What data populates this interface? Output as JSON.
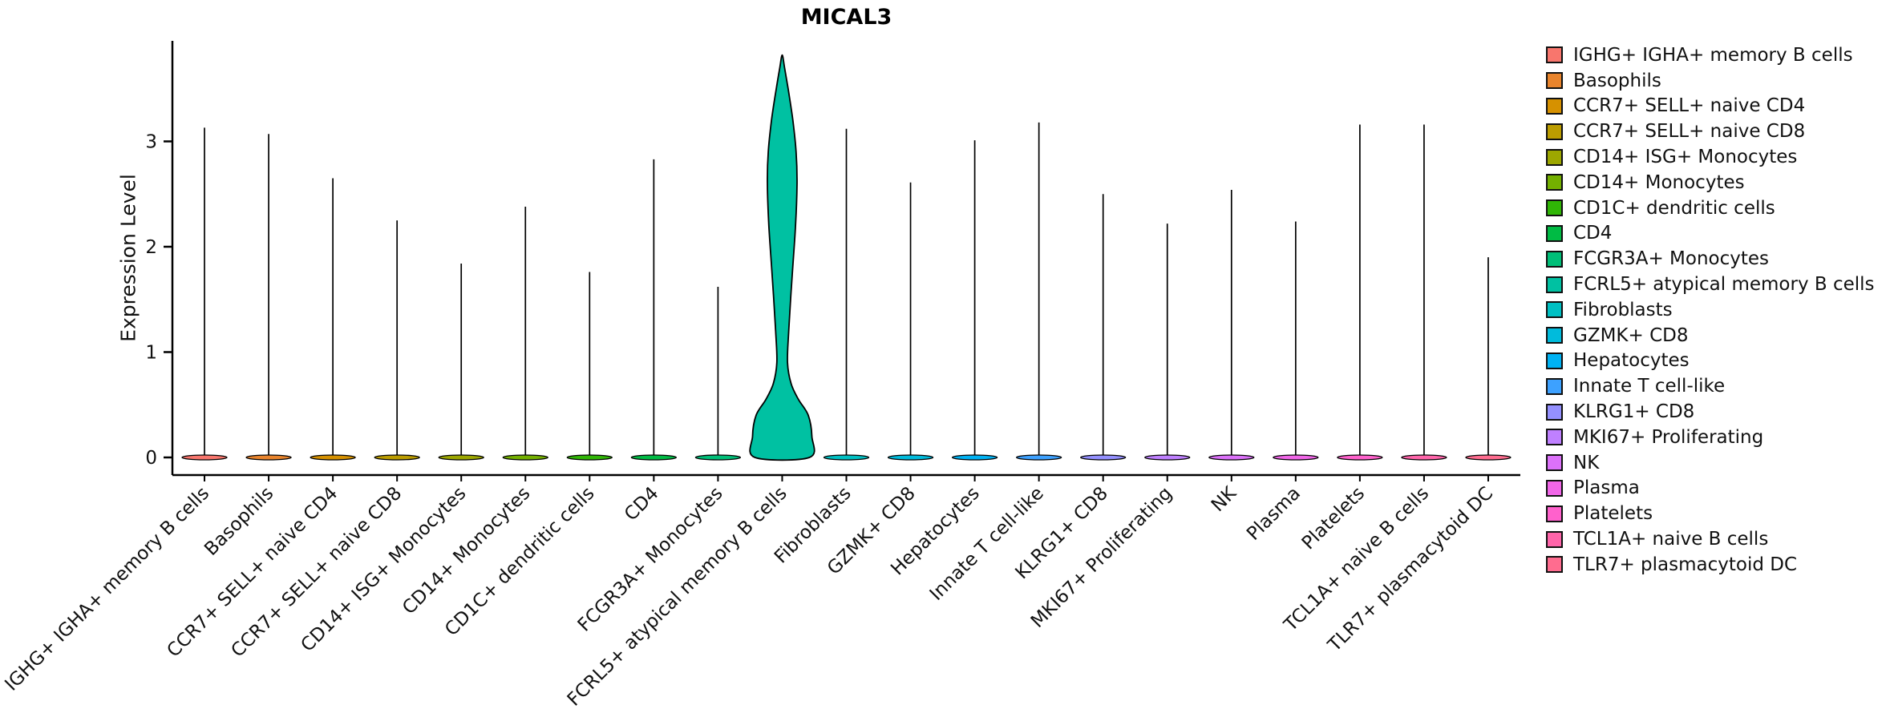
{
  "chart_data": {
    "type": "violin",
    "title": "MICAL3",
    "ylabel": "Expression Level",
    "y_ticks": [
      0,
      1,
      2,
      3
    ],
    "ylim": [
      -0.17,
      3.95
    ],
    "grid": false,
    "legend_position": "right",
    "categories": [
      {
        "label": "IGHG+ IGHA+ memory B cells",
        "color": "#F8766D",
        "max_expression": 3.13
      },
      {
        "label": "Basophils",
        "color": "#E9842C",
        "max_expression": 3.07
      },
      {
        "label": "CCR7+ SELL+ naive CD4",
        "color": "#D69100",
        "max_expression": 2.65
      },
      {
        "label": "CCR7+ SELL+ naive CD8",
        "color": "#BC9D00",
        "max_expression": 2.25
      },
      {
        "label": "CD14+ ISG+ Monocytes",
        "color": "#9DA700",
        "max_expression": 1.84
      },
      {
        "label": "CD14+ Monocytes",
        "color": "#74B000",
        "max_expression": 2.38
      },
      {
        "label": "CD1C+ dendritic cells",
        "color": "#30B606",
        "max_expression": 1.76
      },
      {
        "label": "CD4",
        "color": "#00BB44",
        "max_expression": 2.83
      },
      {
        "label": "FCGR3A+ Monocytes",
        "color": "#00BF78",
        "max_expression": 1.62
      },
      {
        "label": "FCRL5+ atypical memory B cells",
        "color": "#00C1A2",
        "max_expression": 3.82,
        "profile": [
          [
            0,
            0.92
          ],
          [
            0.2,
            1.0
          ],
          [
            0.4,
            0.88
          ],
          [
            0.55,
            0.55
          ],
          [
            0.7,
            0.3
          ],
          [
            0.9,
            0.18
          ],
          [
            1.2,
            0.22
          ],
          [
            1.7,
            0.33
          ],
          [
            2.2,
            0.45
          ],
          [
            2.6,
            0.5
          ],
          [
            2.9,
            0.47
          ],
          [
            3.2,
            0.36
          ],
          [
            3.5,
            0.2
          ],
          [
            3.7,
            0.08
          ],
          [
            3.82,
            0.0
          ]
        ]
      },
      {
        "label": "Fibroblasts",
        "color": "#00C0C3",
        "max_expression": 3.12
      },
      {
        "label": "GZMK+ CD8",
        "color": "#00BBDC",
        "max_expression": 2.61
      },
      {
        "label": "Hepatocytes",
        "color": "#00B2F3",
        "max_expression": 3.01
      },
      {
        "label": "Innate T cell-like",
        "color": "#3DA1FF",
        "max_expression": 3.18
      },
      {
        "label": "KLRG1+ CD8",
        "color": "#9490FF",
        "max_expression": 2.5
      },
      {
        "label": "MKI67+ Proliferating",
        "color": "#BF80FF",
        "max_expression": 2.22
      },
      {
        "label": "NK",
        "color": "#DC71FA",
        "max_expression": 2.54
      },
      {
        "label": "Plasma",
        "color": "#F166E8",
        "max_expression": 2.24
      },
      {
        "label": "Platelets",
        "color": "#FF61CC",
        "max_expression": 3.16
      },
      {
        "label": "TCL1A+ naive B cells",
        "color": "#FF65AA",
        "max_expression": 3.16
      },
      {
        "label": "TLR7+ plasmacytoid DC",
        "color": "#FF6C8F",
        "max_expression": 1.9
      }
    ]
  }
}
